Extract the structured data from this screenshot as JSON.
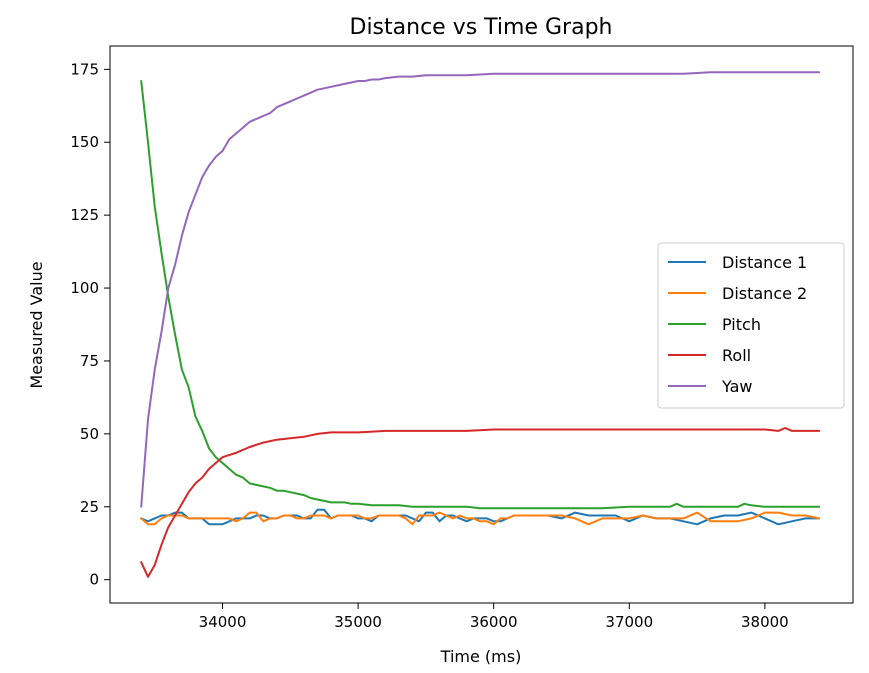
{
  "chart_data": {
    "type": "line",
    "title": "Distance vs Time Graph",
    "xlabel": "Time (ms)",
    "ylabel": "Measured Value",
    "xlim": [
      33170,
      38650
    ],
    "ylim": [
      -8,
      183
    ],
    "xticks": [
      34000,
      35000,
      36000,
      37000,
      38000
    ],
    "yticks": [
      0,
      25,
      50,
      75,
      100,
      125,
      150,
      175
    ],
    "grid": false,
    "legend_position": "center-right",
    "series": [
      {
        "name": "Distance 1",
        "color": "#1f77b4",
        "x": [
          33400,
          33450,
          33500,
          33550,
          33600,
          33650,
          33700,
          33750,
          33800,
          33850,
          33900,
          33950,
          34000,
          34050,
          34100,
          34150,
          34200,
          34250,
          34300,
          34350,
          34400,
          34450,
          34500,
          34550,
          34600,
          34650,
          34700,
          34750,
          34800,
          34850,
          34900,
          34950,
          35000,
          35050,
          35100,
          35150,
          35200,
          35250,
          35300,
          35350,
          35400,
          35450,
          35500,
          35550,
          35600,
          35650,
          35700,
          35750,
          35800,
          35850,
          35900,
          35950,
          36000,
          36050,
          36100,
          36150,
          36200,
          36300,
          36400,
          36500,
          36600,
          36700,
          36800,
          36900,
          37000,
          37100,
          37200,
          37300,
          37400,
          37500,
          37600,
          37700,
          37800,
          37900,
          38000,
          38100,
          38200,
          38300,
          38400
        ],
        "y": [
          21,
          20,
          21,
          22,
          22,
          23,
          23,
          21,
          21,
          21,
          19,
          19,
          19,
          20,
          21,
          21,
          21,
          22,
          22,
          21,
          21,
          22,
          22,
          22,
          21,
          21,
          24,
          24,
          21,
          22,
          22,
          22,
          21,
          21,
          20,
          22,
          22,
          22,
          22,
          22,
          21,
          20,
          23,
          23,
          20,
          22,
          22,
          21,
          20,
          21,
          21,
          21,
          20,
          20,
          21,
          22,
          22,
          22,
          22,
          21,
          23,
          22,
          22,
          22,
          20,
          22,
          21,
          21,
          20,
          19,
          21,
          22,
          22,
          23,
          21,
          19,
          20,
          21,
          21
        ]
      },
      {
        "name": "Distance 2",
        "color": "#ff7f0e",
        "x": [
          33400,
          33450,
          33500,
          33550,
          33600,
          33650,
          33700,
          33750,
          33800,
          33850,
          33900,
          33950,
          34000,
          34050,
          34100,
          34150,
          34200,
          34250,
          34300,
          34350,
          34400,
          34450,
          34500,
          34550,
          34600,
          34650,
          34700,
          34750,
          34800,
          34850,
          34900,
          34950,
          35000,
          35050,
          35100,
          35150,
          35200,
          35250,
          35300,
          35350,
          35400,
          35450,
          35500,
          35550,
          35600,
          35650,
          35700,
          35750,
          35800,
          35850,
          35900,
          35950,
          36000,
          36050,
          36100,
          36150,
          36200,
          36300,
          36400,
          36500,
          36600,
          36700,
          36800,
          36900,
          37000,
          37100,
          37200,
          37300,
          37400,
          37500,
          37600,
          37700,
          37800,
          37900,
          38000,
          38100,
          38200,
          38300,
          38400
        ],
        "y": [
          21,
          19,
          19,
          21,
          22,
          22,
          22,
          21,
          21,
          21,
          21,
          21,
          21,
          21,
          20,
          21,
          23,
          23,
          20,
          21,
          21,
          22,
          22,
          21,
          21,
          22,
          22,
          22,
          21,
          22,
          22,
          22,
          22,
          21,
          21,
          22,
          22,
          22,
          22,
          21,
          19,
          22,
          22,
          22,
          23,
          22,
          21,
          22,
          21,
          21,
          20,
          20,
          19,
          21,
          21,
          22,
          22,
          22,
          22,
          22,
          21,
          19,
          21,
          21,
          21,
          22,
          21,
          21,
          21,
          23,
          20,
          20,
          20,
          21,
          23,
          23,
          22,
          22,
          21
        ]
      },
      {
        "name": "Pitch",
        "color": "#2ca02c",
        "x": [
          33400,
          33450,
          33500,
          33550,
          33600,
          33650,
          33700,
          33750,
          33800,
          33850,
          33900,
          33950,
          34000,
          34050,
          34100,
          34150,
          34200,
          34250,
          34300,
          34350,
          34400,
          34450,
          34500,
          34550,
          34600,
          34650,
          34700,
          34750,
          34800,
          34850,
          34900,
          34950,
          35000,
          35100,
          35200,
          35300,
          35400,
          35500,
          35600,
          35700,
          35800,
          35900,
          36000,
          36200,
          36400,
          36600,
          36800,
          37000,
          37200,
          37300,
          37350,
          37400,
          37500,
          37600,
          37700,
          37800,
          37850,
          37900,
          38000,
          38200,
          38400
        ],
        "y": [
          171,
          150,
          128,
          112,
          97,
          84,
          72,
          66,
          56,
          51,
          45,
          42,
          40,
          38,
          36,
          35,
          33,
          32.5,
          32,
          31.5,
          30.5,
          30.5,
          30,
          29.5,
          29,
          28,
          27.5,
          27,
          26.5,
          26.5,
          26.5,
          26,
          26,
          25.5,
          25.5,
          25.5,
          25,
          25,
          25,
          25,
          25,
          24.5,
          24.5,
          24.5,
          24.5,
          24.5,
          24.5,
          25,
          25,
          25,
          26,
          25,
          25,
          25,
          25,
          25,
          26,
          25.5,
          25,
          25,
          25
        ]
      },
      {
        "name": "Roll",
        "color": "#d62728",
        "x": [
          33400,
          33450,
          33500,
          33550,
          33600,
          33650,
          33700,
          33750,
          33800,
          33850,
          33900,
          33950,
          34000,
          34100,
          34200,
          34300,
          34400,
          34500,
          34600,
          34700,
          34800,
          34900,
          35000,
          35200,
          35400,
          35600,
          35800,
          36000,
          36200,
          36400,
          36600,
          36800,
          37000,
          37200,
          37400,
          37600,
          37800,
          38000,
          38100,
          38150,
          38200,
          38400
        ],
        "y": [
          6,
          1,
          5,
          12,
          18,
          22,
          26,
          30,
          33,
          35,
          38,
          40,
          42,
          43.5,
          45.5,
          47,
          48,
          48.5,
          49,
          50,
          50.5,
          50.5,
          50.5,
          51,
          51,
          51,
          51,
          51.5,
          51.5,
          51.5,
          51.5,
          51.5,
          51.5,
          51.5,
          51.5,
          51.5,
          51.5,
          51.5,
          51,
          52,
          51,
          51
        ]
      },
      {
        "name": "Yaw",
        "color": "#9467bd",
        "x": [
          33400,
          33450,
          33500,
          33550,
          33600,
          33650,
          33700,
          33750,
          33800,
          33850,
          33900,
          33950,
          34000,
          34050,
          34100,
          34150,
          34200,
          34250,
          34300,
          34350,
          34400,
          34450,
          34500,
          34550,
          34600,
          34650,
          34700,
          34750,
          34800,
          34850,
          34900,
          34950,
          35000,
          35050,
          35100,
          35150,
          35200,
          35300,
          35400,
          35500,
          35600,
          35700,
          35800,
          36000,
          36200,
          36400,
          36600,
          36800,
          37000,
          37200,
          37400,
          37600,
          37800,
          38000,
          38200,
          38400
        ],
        "y": [
          25,
          55,
          72,
          85,
          100,
          108,
          118,
          126,
          132,
          138,
          142,
          145,
          147,
          151,
          153,
          155,
          157,
          158,
          159,
          160,
          162,
          163,
          164,
          165,
          166,
          167,
          168,
          168.5,
          169,
          169.5,
          170,
          170.5,
          171,
          171,
          171.5,
          171.5,
          172,
          172.5,
          172.5,
          173,
          173,
          173,
          173,
          173.5,
          173.5,
          173.5,
          173.5,
          173.5,
          173.5,
          173.5,
          173.5,
          174,
          174,
          174,
          174,
          174
        ]
      }
    ]
  }
}
